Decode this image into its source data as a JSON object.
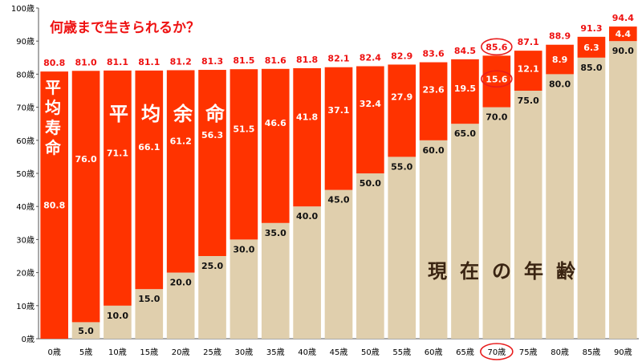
{
  "chart_data": {
    "type": "bar",
    "stacked": true,
    "title": "何歳まで生きられるか？",
    "ylim": [
      0,
      100
    ],
    "y_ticks": [
      "0歳",
      "10歳",
      "20歳",
      "30歳",
      "40歳",
      "50歳",
      "60歳",
      "70歳",
      "80歳",
      "90歳",
      "100歳"
    ],
    "categories": [
      "0歳",
      "5歳",
      "10歳",
      "15歳",
      "20歳",
      "25歳",
      "30歳",
      "35歳",
      "40歳",
      "45歳",
      "50歳",
      "55歳",
      "60歳",
      "65歳",
      "70歳",
      "75歳",
      "80歳",
      "85歳",
      "90歳"
    ],
    "series": [
      {
        "key": "current_age",
        "color": "#e0cfad",
        "values": [
          0,
          5,
          10,
          15,
          20,
          25,
          30,
          35,
          40,
          45,
          50,
          55,
          60,
          65,
          70,
          75,
          80,
          85,
          90
        ],
        "labels": [
          "",
          "5.0",
          "10.0",
          "15.0",
          "20.0",
          "25.0",
          "30.0",
          "35.0",
          "40.0",
          "45.0",
          "50.0",
          "55.0",
          "60.0",
          "65.0",
          "70.0",
          "75.0",
          "80.0",
          "85.0",
          "90.0"
        ]
      },
      {
        "key": "remaining_life",
        "color": "#ff3300",
        "values": [
          80.8,
          76.0,
          71.1,
          66.1,
          61.2,
          56.3,
          51.5,
          46.6,
          41.8,
          37.1,
          32.4,
          27.9,
          23.6,
          19.5,
          15.6,
          12.1,
          8.9,
          6.3,
          4.4
        ],
        "labels": [
          "80.8",
          "76.0",
          "71.1",
          "66.1",
          "61.2",
          "56.3",
          "51.5",
          "46.6",
          "41.8",
          "37.1",
          "32.4",
          "27.9",
          "23.6",
          "19.5",
          "15.6",
          "12.1",
          "8.9",
          "6.3",
          "4.4"
        ]
      }
    ],
    "totals": [
      80.8,
      81.0,
      81.1,
      81.1,
      81.2,
      81.3,
      81.5,
      81.6,
      81.8,
      82.1,
      82.4,
      82.9,
      83.6,
      84.5,
      85.6,
      87.1,
      88.9,
      91.3,
      94.4
    ],
    "total_labels": [
      "80.8",
      "81.0",
      "81.1",
      "81.1",
      "81.2",
      "81.3",
      "81.5",
      "81.6",
      "81.8",
      "82.1",
      "82.4",
      "82.9",
      "83.6",
      "84.5",
      "85.6",
      "87.1",
      "88.9",
      "91.3",
      "94.4"
    ],
    "highlight_category": "70歳",
    "annotations": {
      "life_expectancy_vertical": "平均寿命",
      "remaining_life_label": "平均余命",
      "current_age_label": "現在の年齢"
    },
    "colors": {
      "remaining": "#ff3300",
      "current": "#e0cfad",
      "total_label": "#ee1111",
      "highlight_circle": "#e81d1d"
    },
    "grid": false,
    "legend": "none"
  }
}
